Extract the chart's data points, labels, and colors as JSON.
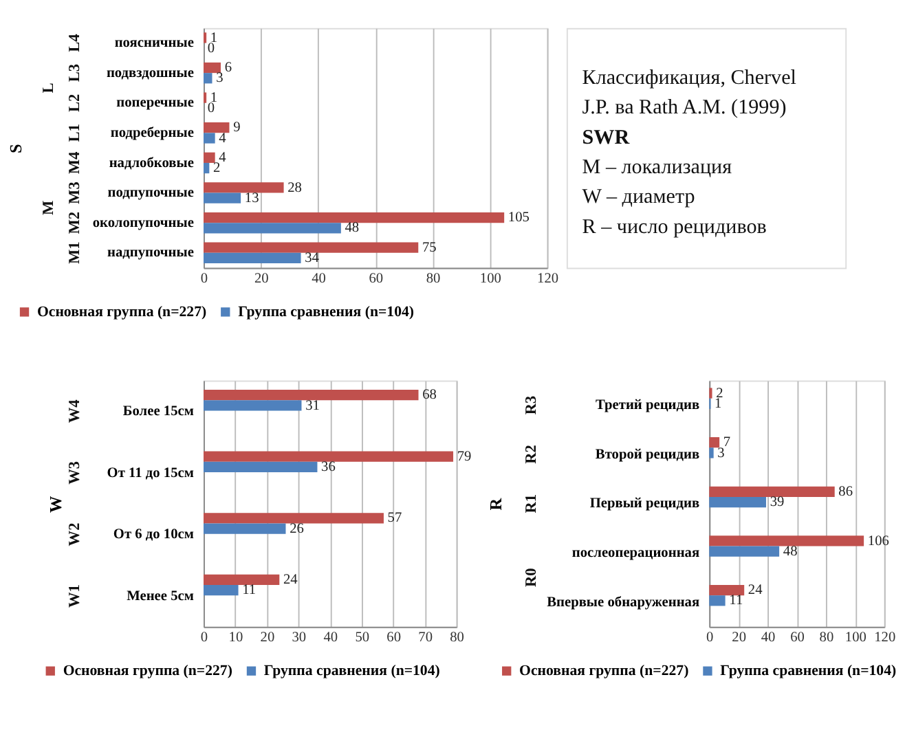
{
  "chart_data": [
    {
      "type": "bar",
      "orientation": "horizontal",
      "ylabel": "S",
      "categories": [
        "поясничные",
        "подвздошные",
        "поперечные",
        "подреберные",
        "надлобковые",
        "подпупочные",
        "околопупочные",
        "надпупочные"
      ],
      "series": [
        {
          "name": "Основная группа (n=227)",
          "color": "#c0504d",
          "values": [
            1,
            6,
            1,
            9,
            4,
            28,
            105,
            75
          ]
        },
        {
          "name": "Группа сравнения (n=104)",
          "color": "#4f81bd",
          "values": [
            0,
            3,
            0,
            4,
            2,
            13,
            48,
            34
          ]
        }
      ],
      "annotations": [
        "L4",
        "L3",
        "L2",
        "L1",
        "M4",
        "M3",
        "M2",
        "M1",
        "L",
        "M"
      ],
      "xlim": [
        0,
        120
      ],
      "xticks": [
        0,
        20,
        40,
        60,
        80,
        100,
        120
      ],
      "grid": "x",
      "legend": "bottom",
      "data_labels": true
    },
    {
      "type": "other",
      "annotations": [
        "Классификация, Chervel J.P. ва Rath A.M. (1999)",
        "SWR",
        "M – локализация",
        "W – диаметр",
        "R – число рецидивов"
      ]
    },
    {
      "type": "bar",
      "orientation": "horizontal",
      "ylabel": "W",
      "categories": [
        "Более 15см",
        "От 11 до 15см",
        "От 6 до 10см",
        "Менее 5см"
      ],
      "series": [
        {
          "name": "Основная группа (n=227)",
          "color": "#c0504d",
          "values": [
            68,
            79,
            57,
            24
          ]
        },
        {
          "name": "Группа сравнения (n=104)",
          "color": "#4f81bd",
          "values": [
            31,
            36,
            26,
            11
          ]
        }
      ],
      "annotations": [
        "W4",
        "W3",
        "W2",
        "W1"
      ],
      "xlim": [
        0,
        80
      ],
      "xticks": [
        0,
        10,
        20,
        30,
        40,
        50,
        60,
        70,
        80
      ],
      "grid": "x",
      "legend": "bottom",
      "data_labels": true
    },
    {
      "type": "bar",
      "orientation": "horizontal",
      "ylabel": "R",
      "categories": [
        "Третий рецидив",
        "Второй рецидив",
        "Первый рецидив",
        "послеоперационная",
        "Впервые обнаруженная"
      ],
      "series": [
        {
          "name": "Основная группа (n=227)",
          "color": "#c0504d",
          "values": [
            2,
            7,
            86,
            106,
            24
          ]
        },
        {
          "name": "Группа сравнения (n=104)",
          "color": "#4f81bd",
          "values": [
            1,
            3,
            39,
            48,
            11
          ]
        }
      ],
      "annotations": [
        "R3",
        "R2",
        "R1",
        "R0"
      ],
      "xlim": [
        0,
        120
      ],
      "xticks": [
        0,
        20,
        40,
        60,
        80,
        100,
        120
      ],
      "grid": "x",
      "legend": "bottom",
      "data_labels": true
    }
  ]
}
